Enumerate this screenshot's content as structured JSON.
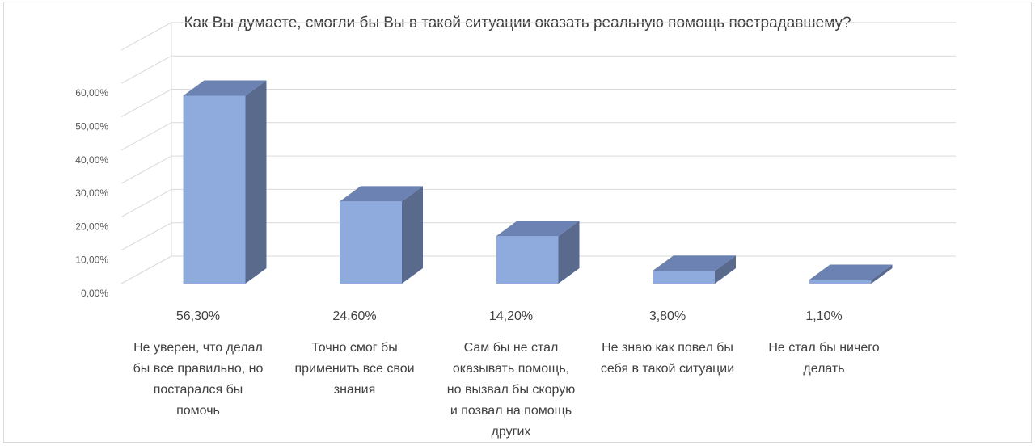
{
  "chart_data": {
    "type": "bar",
    "title": "Как Вы думаете, смогли бы Вы в такой ситуации оказать реальную помощь пострадавшему?",
    "categories": [
      [
        "Не уверен, что делал",
        "бы все правильно, но",
        "постарался бы",
        "помочь"
      ],
      [
        "Точно смог бы",
        "применить все свои",
        "знания"
      ],
      [
        "Сам бы не стал",
        "оказывать помощь,",
        "но вызвал бы скорую",
        "и позвал на помощь",
        "других"
      ],
      [
        "Не знаю как повел бы",
        "себя в такой ситуации"
      ],
      [
        "Не стал бы ничего",
        "делать"
      ]
    ],
    "values": [
      56.3,
      24.6,
      14.2,
      3.8,
      1.1
    ],
    "value_labels": [
      "56,30%",
      "24,60%",
      "14,20%",
      "3,80%",
      "1,10%"
    ],
    "y_ticks": [
      "0,00%",
      "10,00%",
      "20,00%",
      "30,00%",
      "40,00%",
      "50,00%",
      "60,00%"
    ],
    "ylim": [
      0,
      70
    ],
    "grid": true,
    "three_d": true,
    "colors": {
      "front": "#8fabdd",
      "side": "#5a6a8c",
      "top": "#6b82b3",
      "grid": "#d9d9d9"
    }
  }
}
